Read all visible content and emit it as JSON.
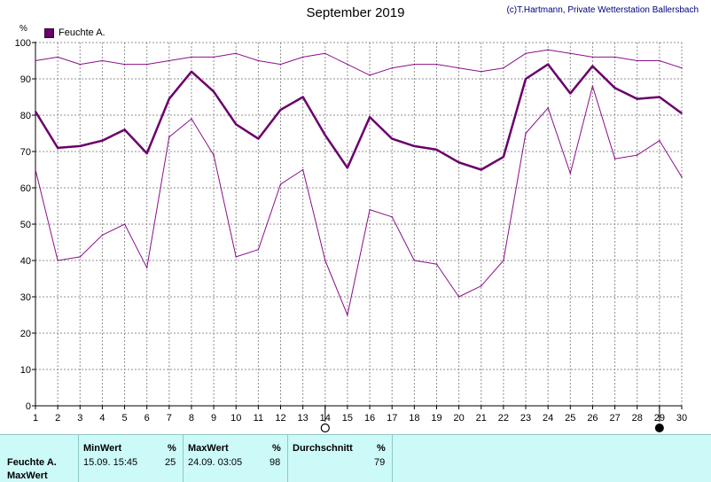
{
  "title": "September 2019",
  "credit": "(c)T.Hartmann, Private Wetterstation Ballersbach",
  "chart_data": {
    "type": "line",
    "ylabel": "%",
    "ylim": [
      0,
      100
    ],
    "yticks": [
      0,
      10,
      20,
      30,
      40,
      50,
      60,
      70,
      80,
      90,
      100
    ],
    "x": [
      1,
      2,
      3,
      4,
      5,
      6,
      7,
      8,
      9,
      10,
      11,
      12,
      13,
      14,
      15,
      16,
      17,
      18,
      19,
      20,
      21,
      22,
      23,
      24,
      25,
      26,
      27,
      28,
      29,
      30
    ],
    "grid": true,
    "legend": "top-left",
    "series": [
      {
        "name": "Feuchte A.",
        "role": "avg",
        "color": "#6a006a",
        "values": [
          81,
          71,
          71.5,
          73,
          76,
          69.5,
          84.5,
          92,
          86.5,
          77.5,
          73.5,
          81.5,
          85,
          74.5,
          65.5,
          79.5,
          73.5,
          71.5,
          70.5,
          67,
          65,
          68.5,
          90,
          94,
          86,
          93.5,
          87.5,
          84.5,
          85,
          80.5
        ]
      },
      {
        "role": "max",
        "color": "#8a108a",
        "values": [
          95,
          96,
          94,
          95,
          94,
          94,
          95,
          96,
          96,
          97,
          95,
          94,
          96,
          97,
          94,
          91,
          93,
          94,
          94,
          93,
          92,
          93,
          97,
          98,
          97,
          96,
          96,
          95,
          95,
          93
        ]
      },
      {
        "role": "min",
        "color": "#8a108a",
        "values": [
          65,
          40,
          41,
          47,
          50,
          38,
          74,
          79,
          69,
          41,
          43,
          61,
          65,
          40,
          25,
          54,
          52,
          40,
          39,
          30,
          33,
          40,
          75,
          82,
          64,
          88,
          68,
          69,
          73,
          63
        ]
      }
    ],
    "markers": {
      "open_circle_day": 14,
      "filled_circle_day": 29
    }
  },
  "stats": {
    "row_label": "Feuchte A.",
    "row2_label": "MaxWert",
    "min_header": "MinWert",
    "max_header": "MaxWert",
    "avg_header": "Durchschnitt",
    "unit": "%",
    "min_time": "15.09.  15:45",
    "min_value": "25",
    "max_time": "24.09.  03:05",
    "max_value": "98",
    "avg_value": "79"
  }
}
